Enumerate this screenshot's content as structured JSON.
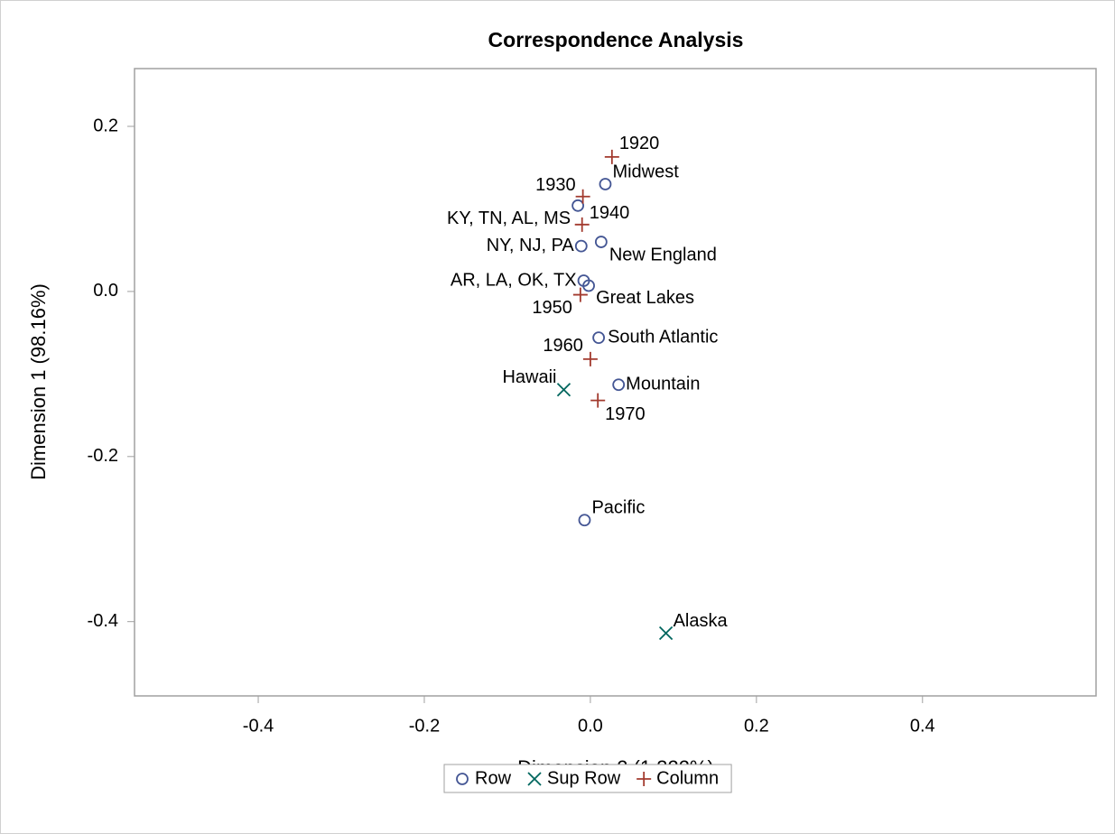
{
  "chart_data": {
    "type": "scatter",
    "title": "Correspondence Analysis",
    "x_label": "Dimension 2 (1.322%)",
    "y_label": "Dimension 1 (98.16%)",
    "xlim": [
      -0.549,
      0.609
    ],
    "ylim": [
      -0.49,
      0.27
    ],
    "xticks": [
      -0.4,
      -0.2,
      {
        "value": 0,
        "label": "0.0"
      },
      0.2,
      0.4
    ],
    "yticks": [
      -0.4,
      -0.2,
      {
        "value": 0,
        "label": "0.0"
      },
      0.2
    ],
    "grid": false,
    "legend": "bottom",
    "series": [
      {
        "name": "Row",
        "color": "#445694",
        "marker": "circle",
        "labels": [
          "Midwest",
          "KY, TN, AL, MS",
          "NY, NJ, PA",
          "New England",
          "AR, LA, OK, TX",
          "Great Lakes",
          "South Atlantic",
          "Mountain",
          "Pacific"
        ],
        "x": [
          0.018,
          -0.015,
          -0.011,
          0.013,
          -0.008,
          -0.002,
          0.01,
          0.034,
          -0.007
        ],
        "values": [
          0.13,
          0.104,
          0.055,
          0.06,
          0.013,
          0.007,
          -0.056,
          -0.113,
          -0.277
        ]
      },
      {
        "name": "Sup Row",
        "color": "#01665e",
        "marker": "x",
        "labels": [
          "Hawaii",
          "Alaska"
        ],
        "x": [
          -0.032,
          0.091
        ],
        "values": [
          -0.119,
          -0.414
        ]
      },
      {
        "name": "Column",
        "color": "#a23a2e",
        "marker": "plus",
        "labels": [
          "1920",
          "1930",
          "1940",
          "1950",
          "1960",
          "1970"
        ],
        "x": [
          0.026,
          -0.009,
          -0.01,
          -0.012,
          0.0,
          0.009
        ],
        "values": [
          0.163,
          0.115,
          0.081,
          -0.004,
          -0.082,
          -0.132
        ]
      }
    ]
  }
}
